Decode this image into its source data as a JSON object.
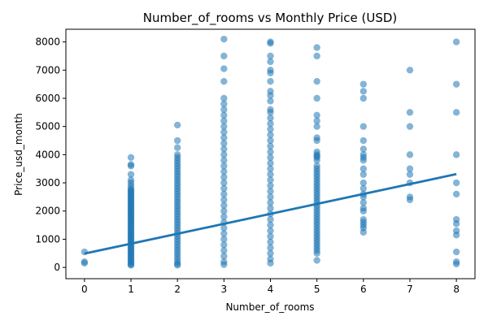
{
  "chart_data": {
    "type": "scatter",
    "title": "Number_of_rooms vs Monthly Price (USD)",
    "xlabel": "Number_of_rooms",
    "ylabel": "Price_usd_month",
    "xlim": [
      -0.4,
      8.4
    ],
    "ylim": [
      -400,
      8450
    ],
    "x_ticks": [
      "0",
      "1",
      "2",
      "3",
      "4",
      "5",
      "6",
      "7",
      "8"
    ],
    "y_ticks": [
      "0",
      "1000",
      "2000",
      "3000",
      "4000",
      "5000",
      "6000",
      "7000",
      "8000"
    ],
    "grid": false,
    "colors": {
      "points": "#1f77b4",
      "line": "#1f77b4"
    },
    "points": [
      {
        "x": 0,
        "y": [
          150,
          200,
          550
        ]
      },
      {
        "x": 1,
        "y": [
          3900,
          3650,
          3600,
          3300,
          3100,
          3000,
          2900,
          2800,
          2750,
          2700,
          2650,
          2600,
          2550,
          2500,
          2450,
          2400,
          2350,
          2300,
          2250,
          2200,
          2150,
          2100,
          2050,
          2000,
          1950,
          1900,
          1850,
          1800,
          1750,
          1700,
          1650,
          1600,
          1550,
          1500,
          1450,
          1400,
          1350,
          1300,
          1250,
          1200,
          1150,
          1100,
          1050,
          1000,
          950,
          900,
          850,
          800,
          750,
          700,
          650,
          600,
          550,
          500,
          450,
          400,
          350,
          300,
          250,
          200,
          150,
          100,
          80
        ]
      },
      {
        "x": 2,
        "y": [
          5050,
          4500,
          4250,
          4000,
          3900,
          3800,
          3700,
          3600,
          3500,
          3400,
          3300,
          3200,
          3100,
          3000,
          2900,
          2800,
          2700,
          2600,
          2500,
          2400,
          2300,
          2200,
          2100,
          2000,
          1900,
          1800,
          1700,
          1600,
          1500,
          1400,
          1300,
          1200,
          1100,
          1000,
          900,
          800,
          700,
          600,
          500,
          400,
          300,
          200,
          120,
          80
        ]
      },
      {
        "x": 3,
        "y": [
          8100,
          7500,
          7050,
          6600,
          6000,
          5800,
          5600,
          5400,
          5200,
          5000,
          4800,
          4600,
          4400,
          4200,
          4000,
          3800,
          3600,
          3400,
          3200,
          3000,
          2800,
          2600,
          2400,
          2200,
          2000,
          1800,
          1600,
          1400,
          1200,
          1000,
          800,
          600,
          400,
          200,
          100
        ]
      },
      {
        "x": 4,
        "y": [
          8000,
          7950,
          7500,
          7300,
          7000,
          6900,
          6600,
          6250,
          6100,
          5900,
          5600,
          5500,
          5300,
          5100,
          4900,
          4700,
          4500,
          4300,
          4100,
          3900,
          3700,
          3500,
          3300,
          3100,
          2900,
          2700,
          2500,
          2300,
          2100,
          1900,
          1700,
          1500,
          1300,
          1100,
          900,
          700,
          500,
          300,
          150
        ]
      },
      {
        "x": 5,
        "y": [
          7800,
          7500,
          6600,
          6000,
          5400,
          5200,
          5000,
          4600,
          4500,
          4100,
          4000,
          3950,
          3900,
          3800,
          3600,
          3500,
          3400,
          3300,
          3200,
          3100,
          3000,
          2900,
          2800,
          2700,
          2600,
          2500,
          2400,
          2300,
          2200,
          2100,
          2000,
          1900,
          1800,
          1700,
          1600,
          1500,
          1400,
          1300,
          1200,
          1100,
          1000,
          900,
          800,
          700,
          600,
          500,
          250
        ]
      },
      {
        "x": 6,
        "y": [
          6500,
          6250,
          6000,
          5000,
          4500,
          4200,
          4000,
          3900,
          3800,
          3500,
          3300,
          3000,
          2800,
          2600,
          2500,
          2300,
          2100,
          2000,
          1700,
          1600,
          1500,
          1400,
          1250
        ]
      },
      {
        "x": 7,
        "y": [
          7000,
          5500,
          5000,
          4000,
          3500,
          3300,
          3000,
          2500,
          2400
        ]
      },
      {
        "x": 8,
        "y": [
          8000,
          6500,
          5500,
          4000,
          3000,
          2600,
          1700,
          1550,
          1300,
          1150,
          550,
          200,
          120
        ]
      }
    ],
    "trend_line": {
      "x": [
        0,
        8
      ],
      "y": [
        490,
        3310
      ]
    }
  }
}
